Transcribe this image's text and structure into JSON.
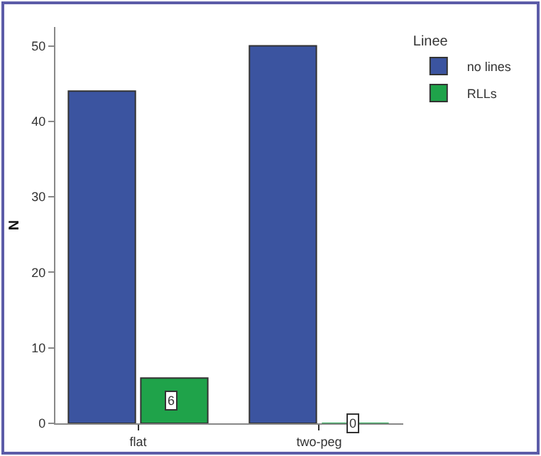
{
  "chart_data": {
    "type": "bar",
    "categories": [
      "flat",
      "two-peg"
    ],
    "ylabel": "N",
    "legend_title": "Linee",
    "legend": "top right",
    "ylim": [
      0,
      52.5
    ],
    "yticks": [
      0,
      10,
      20,
      30,
      40,
      50
    ],
    "grid": false,
    "series": [
      {
        "name": "no lines",
        "color": "#3b54a0",
        "values": [
          44,
          50
        ]
      },
      {
        "name": "RLLs",
        "color": "#1fa34a",
        "values": [
          6,
          0
        ],
        "value_labels": [
          "6",
          "0"
        ]
      }
    ]
  }
}
